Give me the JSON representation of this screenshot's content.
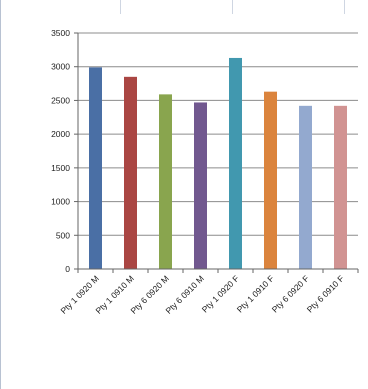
{
  "chart_data": {
    "type": "bar",
    "categories": [
      "Pty 1 0920 M",
      "Pty 1 0910 M",
      "Pty 6 0920 M",
      "Pty 6 0910 M",
      "Pty 1 0920 F",
      "Pty 1 0910 F",
      "Pty 6 0920 F",
      "Pty 6 0910 F"
    ],
    "values": [
      2990,
      2850,
      2590,
      2470,
      3130,
      2630,
      2420,
      2420
    ],
    "colors": [
      "#4a6fa5",
      "#aa4643",
      "#89a54e",
      "#71588f",
      "#4198af",
      "#db843d",
      "#93a9cf",
      "#d19392"
    ],
    "yticks": [
      "0",
      "500",
      "1000",
      "1500",
      "2000",
      "2500",
      "3000",
      "3500"
    ],
    "ylim": [
      0,
      3500
    ],
    "grid": true,
    "title": "",
    "xlabel": "",
    "ylabel": ""
  }
}
